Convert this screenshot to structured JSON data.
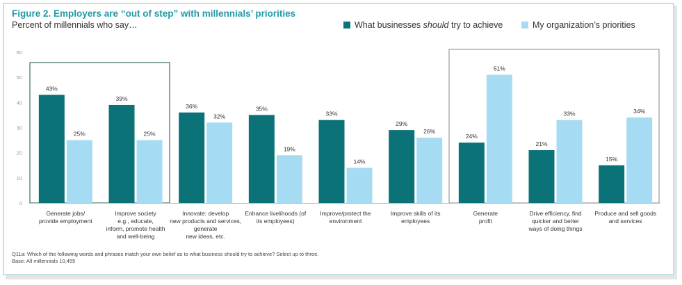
{
  "title_prefix": "Figure 2. ",
  "title_main": "Employers are “out of step” with millennials’ priorities",
  "subtitle": "Percent of millennials who say…",
  "legend": {
    "series1_prefix": "What businesses ",
    "series1_em": "should",
    "series1_suffix": " try to achieve",
    "series2": "My organization’s priorities"
  },
  "colors": {
    "series1": "#0b7277",
    "series2": "#a6dcf3",
    "title": "#1f9aa6",
    "box_dark": "#3c6e55",
    "box_gray": "#9b9b9b"
  },
  "chart_data": {
    "type": "bar",
    "ylim": [
      0,
      60
    ],
    "yticks": [
      0,
      10,
      20,
      30,
      40,
      50,
      60
    ],
    "categories": [
      [
        "Generate jobs/",
        "provide employment"
      ],
      [
        "Improve society",
        "e.g., educate,",
        "inform, promote health",
        "and well-being"
      ],
      [
        "Innovate: develop",
        "new products and services,",
        "generate",
        "new ideas, etc."
      ],
      [
        "Enhance livelihoods (of",
        "its employees)"
      ],
      [
        "Improve/protect the",
        "environment"
      ],
      [
        "Improve skills of its",
        "employees"
      ],
      [
        "Generate",
        "profit"
      ],
      [
        "Drive efficiency, find",
        "quicker and better",
        "ways of doing things"
      ],
      [
        "Produce and sell goods",
        "and services"
      ]
    ],
    "series": [
      {
        "name": "What businesses should try to achieve",
        "values": [
          43,
          39,
          36,
          35,
          33,
          29,
          24,
          21,
          15
        ]
      },
      {
        "name": "My organization’s priorities",
        "values": [
          25,
          25,
          32,
          19,
          14,
          26,
          51,
          33,
          34
        ]
      }
    ],
    "value_suffix": "%"
  },
  "footnote": {
    "line1": "Q11a: Which of the following words and phrases match your own belief as to what business should try to achieve? Select up to three.",
    "line2": "Base: All millennials 10,455"
  }
}
